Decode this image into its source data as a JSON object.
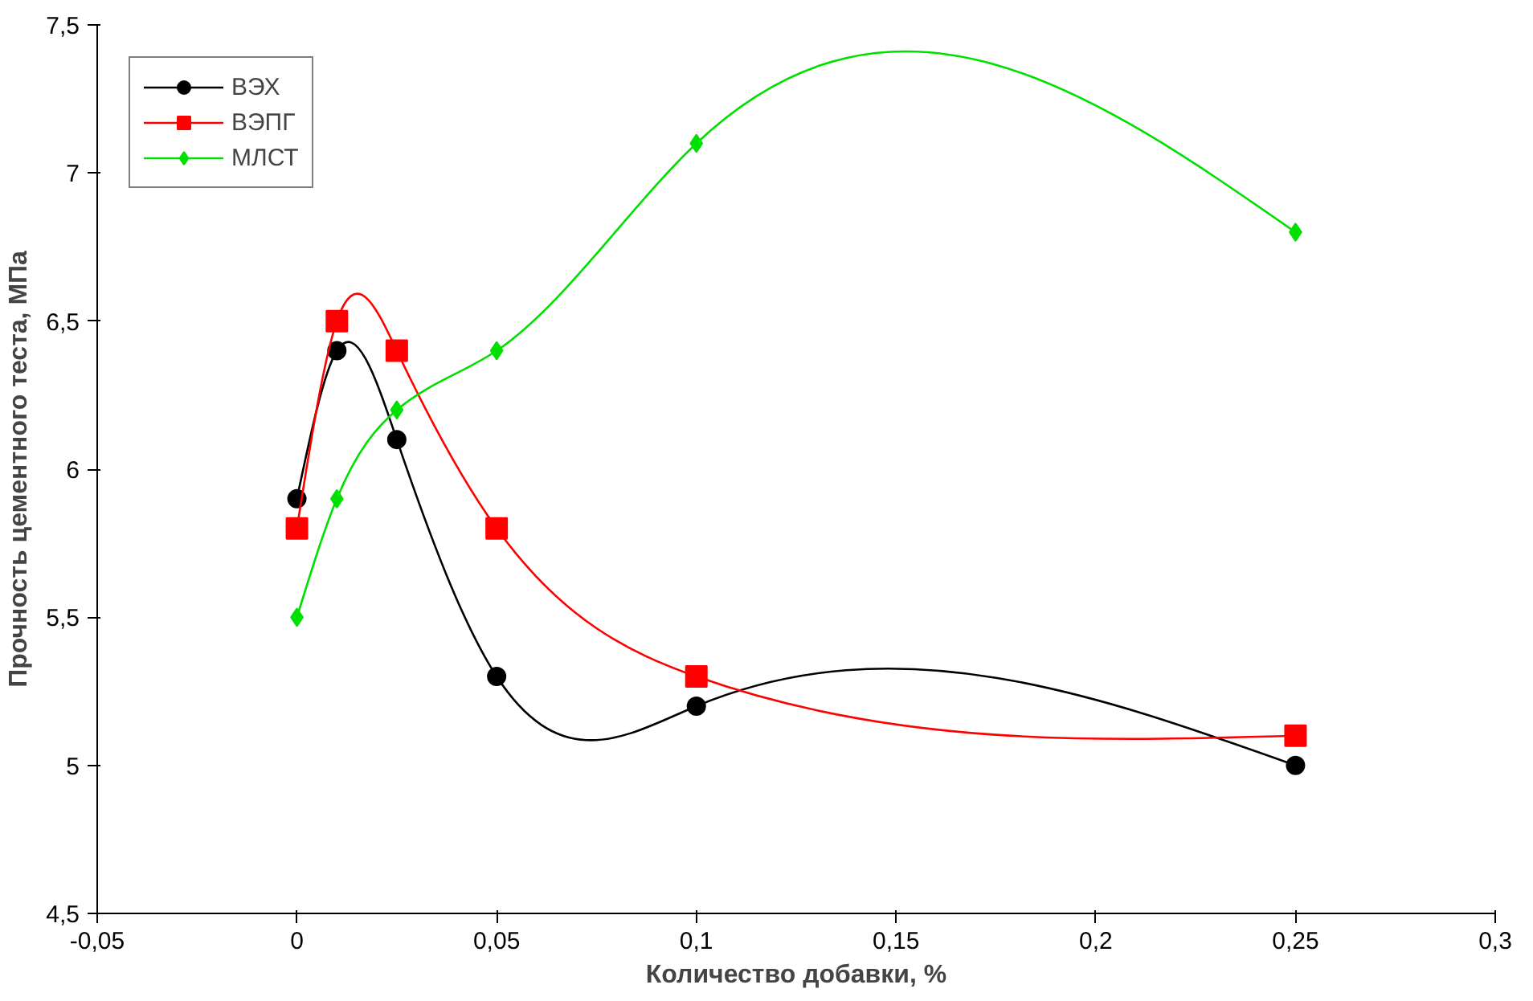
{
  "chart_data": {
    "type": "line",
    "xlabel": "Количество добавки, %",
    "ylabel": "Прочность цементного теста, МПа",
    "x": [
      0,
      0.01,
      0.025,
      0.05,
      0.1,
      0.25
    ],
    "series": [
      {
        "name": "ВЭХ",
        "color": "#000000",
        "marker": "circle",
        "values": [
          5.9,
          6.4,
          6.1,
          5.3,
          5.2,
          5.0
        ]
      },
      {
        "name": "ВЭПГ",
        "color": "#ff0000",
        "marker": "square",
        "values": [
          5.8,
          6.5,
          6.4,
          5.8,
          5.3,
          5.1
        ]
      },
      {
        "name": "МЛСТ",
        "color": "#00e000",
        "marker": "diamond",
        "values": [
          5.5,
          5.9,
          6.2,
          6.4,
          7.1,
          6.8
        ]
      }
    ],
    "xlim": [
      -0.05,
      0.3
    ],
    "xticks": [
      {
        "value": -0.05,
        "label": "-0,05"
      },
      0,
      {
        "value": 0.05,
        "label": "0,05"
      },
      {
        "value": 0.1,
        "label": "0,1"
      },
      {
        "value": 0.15,
        "label": "0,15"
      },
      {
        "value": 0.2,
        "label": "0,2"
      },
      {
        "value": 0.25,
        "label": "0,25"
      },
      {
        "value": 0.3,
        "label": "0,3"
      }
    ],
    "ylim": [
      4.5,
      7.5
    ],
    "yticks": [
      {
        "value": 4.5,
        "label": "4,5"
      },
      5,
      {
        "value": 5.5,
        "label": "5,5"
      },
      6,
      {
        "value": 6.5,
        "label": "6,5"
      },
      7,
      {
        "value": 7.5,
        "label": "7,5"
      }
    ],
    "grid": false,
    "legend": "top left",
    "line_style": "solid"
  }
}
